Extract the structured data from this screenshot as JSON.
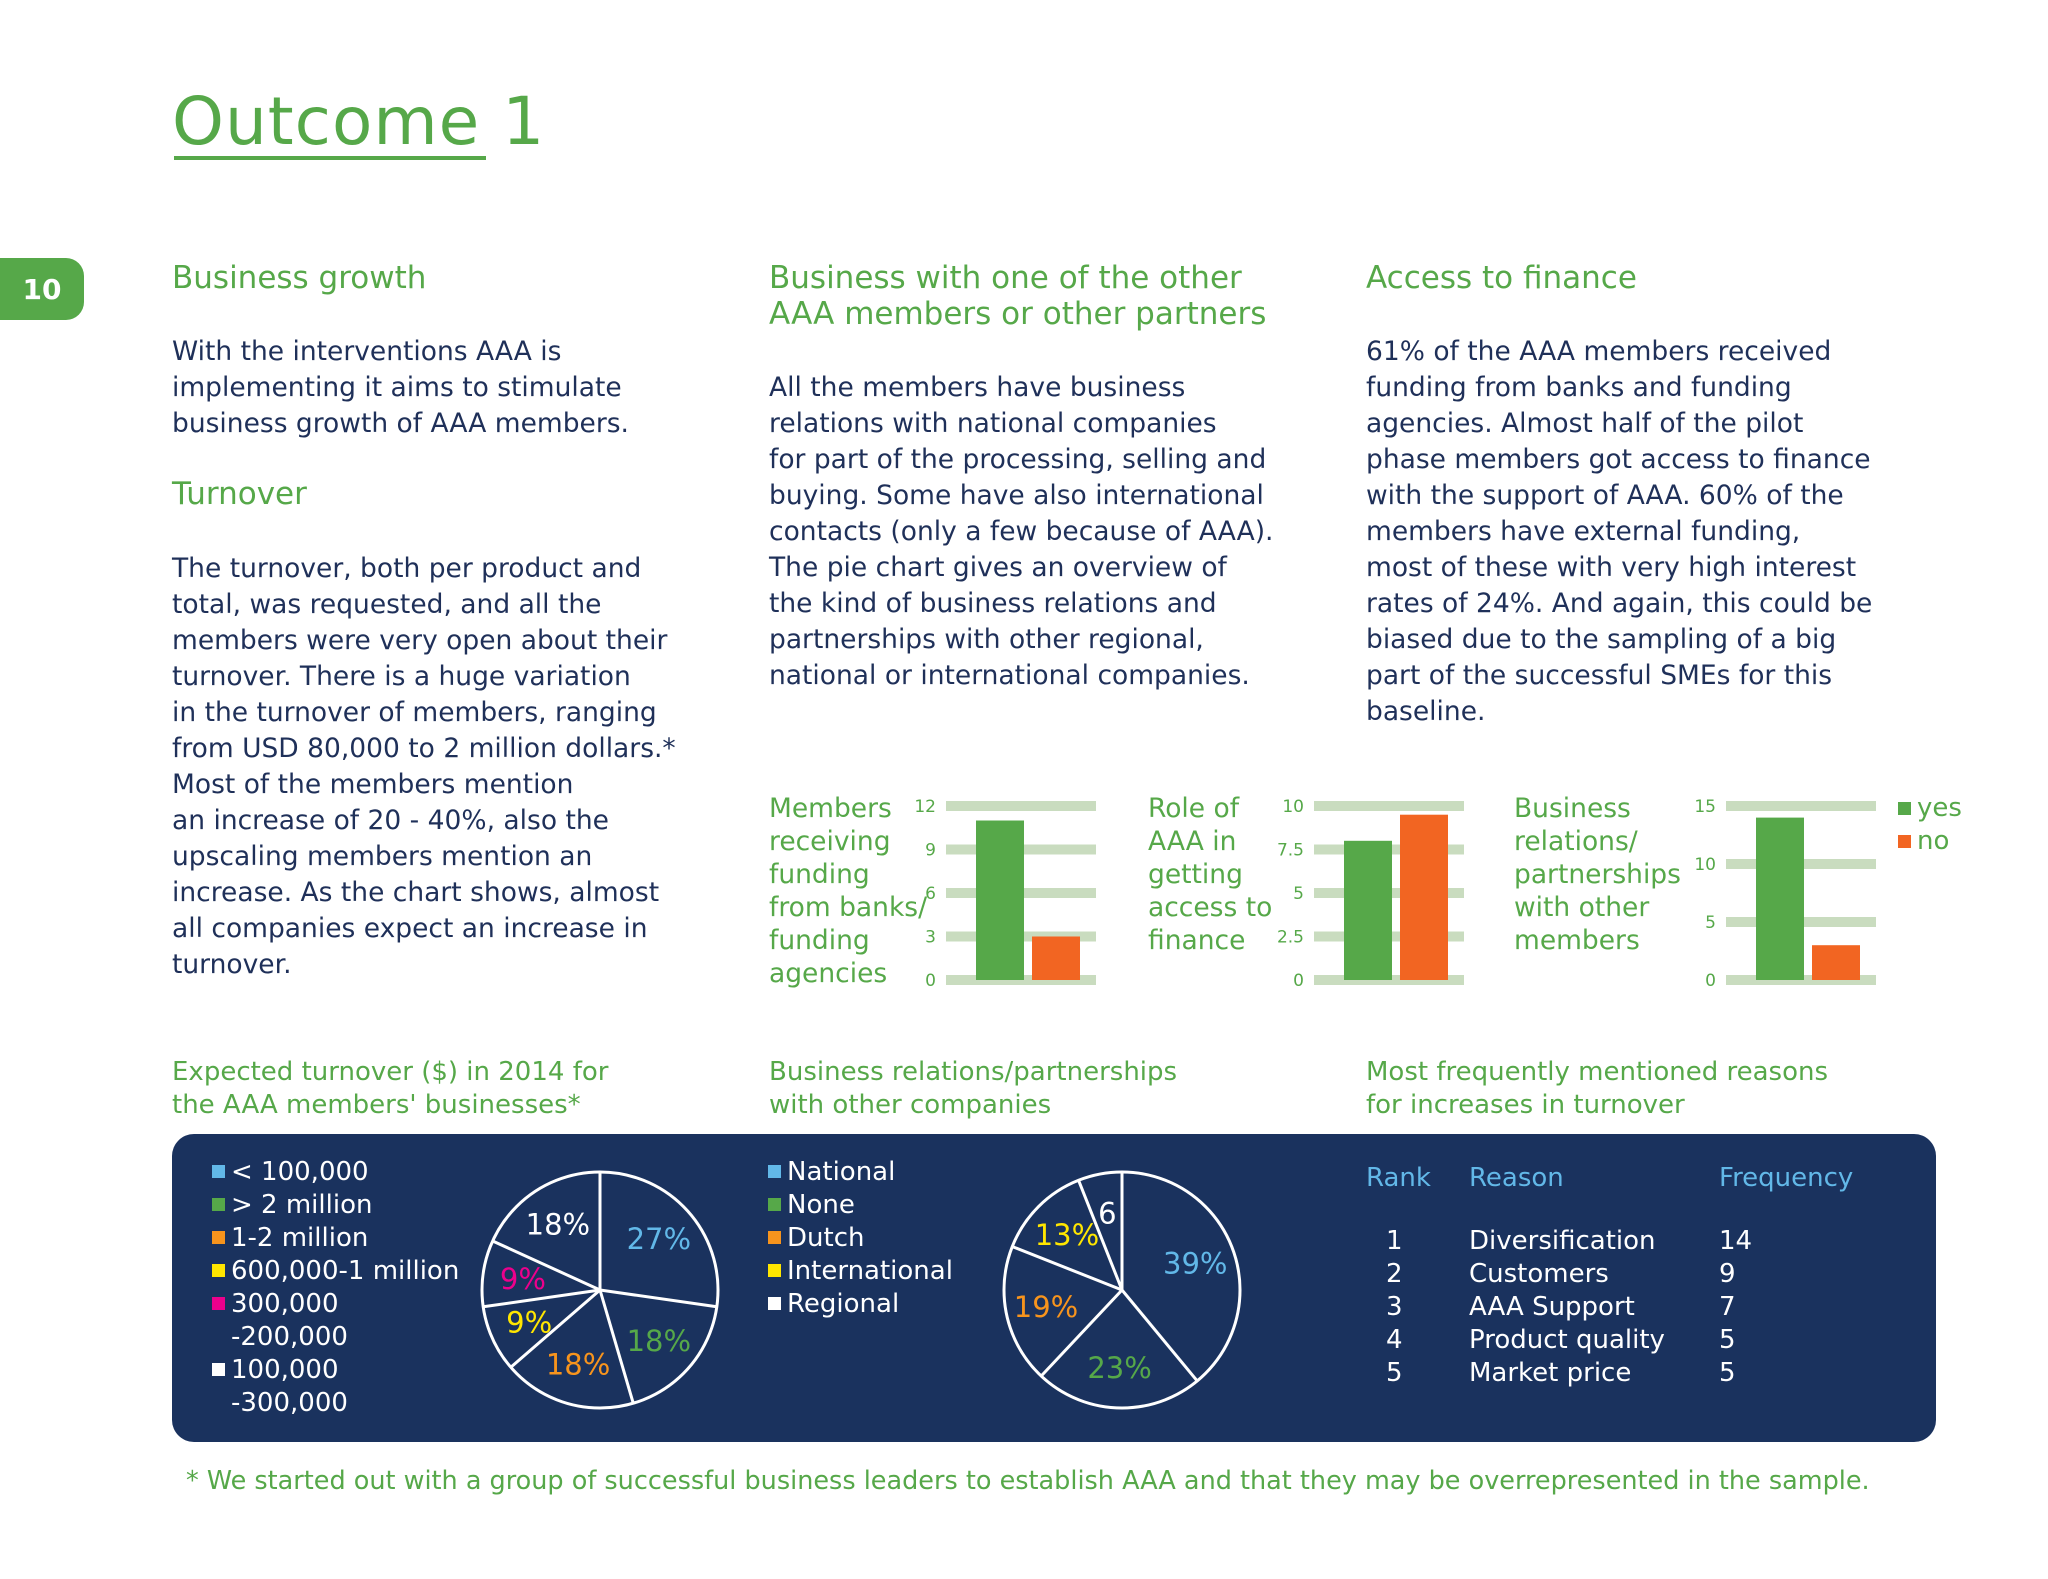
{
  "page": {
    "title": "Outcome 1",
    "page_number": "10",
    "footnote": "* We started out with a group of successful business leaders to establish AAA and that they may be overrepresented in the sample."
  },
  "col1": {
    "heading": "Business growth",
    "intro": "With the interventions AAA is\nimplementing it aims to stimulate\nbusiness growth of AAA members.",
    "subheading": "Turnover",
    "body": "The turnover, both per product and\ntotal, was requested, and all the\nmembers were very open about their\nturnover. There is a huge variation\nin the turnover of members, ranging\nfrom USD 80,000 to 2 million dollars.*\nMost of the members mention\nan increase of 20 - 40%, also the\nupscaling members mention an\nincrease. As the chart shows, almost\nall companies expect an increase in\nturnover."
  },
  "col2": {
    "heading": "Business with one of the other\nAAA members or other partners",
    "body": "All the members have business\nrelations with national companies\nfor part of the processing, selling and\nbuying. Some have also international\ncontacts (only a few because of AAA).\nThe pie chart gives an overview of\nthe kind of business relations and\npartnerships with other regional,\nnational or international companies."
  },
  "col3": {
    "heading": "Access to finance",
    "body": "61% of the AAA members received\nfunding from banks and funding\nagencies. Almost half of the pilot\nphase members got access to finance\nwith the support of AAA. 60% of the\nmembers have external funding,\nmost of these with very high interest\nrates of 24%. And again, this could be\nbiased due to the sampling of a big\npart of the successful SMEs for this\nbaseline."
  },
  "captions": {
    "turnover_pie": "Expected turnover ($) in 2014 for\nthe AAA members' businesses*",
    "relations_pie": "Business relations/partnerships\nwith other companies",
    "reasons_table": "Most frequently mentioned reasons\nfor increases in turnover"
  },
  "bar_legend": {
    "yes_label": "yes",
    "no_label": "no",
    "yes_color": "#56a849",
    "no_color": "#f26522",
    "grid_color": "#c9dcbf"
  },
  "chart_data": [
    {
      "type": "bar",
      "title": "Members\nreceiving\nfunding\nfrom banks/\nfunding\nagencies",
      "series": [
        {
          "name": "yes",
          "values": [
            11
          ]
        },
        {
          "name": "no",
          "values": [
            3
          ]
        }
      ],
      "ylim": [
        0,
        12
      ],
      "ticks": [
        "0",
        "3",
        "6",
        "9",
        "12"
      ],
      "tick_values": [
        0,
        3,
        6,
        9,
        12
      ]
    },
    {
      "type": "bar",
      "title": "Role of\nAAA in\ngetting\naccess to\nfinance",
      "series": [
        {
          "name": "yes",
          "values": [
            8
          ]
        },
        {
          "name": "no",
          "values": [
            9.5
          ]
        }
      ],
      "ylim": [
        0,
        10
      ],
      "ticks": [
        "0",
        "2.5",
        "5",
        "7.5",
        "10"
      ],
      "tick_values": [
        0,
        2.5,
        5,
        7.5,
        10
      ]
    },
    {
      "type": "bar",
      "title": "Business\nrelations/\npartnerships\nwith other\nmembers",
      "series": [
        {
          "name": "yes",
          "values": [
            14
          ]
        },
        {
          "name": "no",
          "values": [
            3
          ]
        }
      ],
      "ylim": [
        0,
        15
      ],
      "ticks": [
        "0",
        "5",
        "10",
        "15"
      ],
      "tick_values": [
        0,
        5,
        10,
        15
      ]
    },
    {
      "type": "pie",
      "title": "Expected turnover ($) in 2014 for the AAA members' businesses*",
      "legend": [
        {
          "label": "< 100,000",
          "color": "#62b8e8"
        },
        {
          "label": "> 2 million",
          "color": "#56a849"
        },
        {
          "label": "1-2 million",
          "color": "#f7941d"
        },
        {
          "label": "600,000-1 million",
          "color": "#ffe600"
        },
        {
          "label": "300,000",
          "label2": "-200,000",
          "color": "#ec008c"
        },
        {
          "label": "100,000",
          "label2": "-300,000",
          "color": "#ffffff"
        }
      ],
      "slices": [
        {
          "label": "27%",
          "value": 27,
          "color": "#62b8e8"
        },
        {
          "label": "18%",
          "value": 18,
          "color": "#56a849"
        },
        {
          "label": "18%",
          "value": 18,
          "color": "#f7941d"
        },
        {
          "label": "9%",
          "value": 9,
          "color": "#ffe600"
        },
        {
          "label": "9%",
          "value": 9,
          "color": "#ec008c"
        },
        {
          "label": "18%",
          "value": 18,
          "color": "#ffffff"
        }
      ]
    },
    {
      "type": "pie",
      "title": "Business relations/partnerships with other companies",
      "legend": [
        {
          "label": "National",
          "color": "#62b8e8"
        },
        {
          "label": "None",
          "color": "#56a849"
        },
        {
          "label": "Dutch",
          "color": "#f7941d"
        },
        {
          "label": "International",
          "color": "#ffe600"
        },
        {
          "label": "Regional",
          "color": "#ffffff"
        }
      ],
      "slices": [
        {
          "label": "39%",
          "value": 39,
          "color": "#62b8e8"
        },
        {
          "label": "23%",
          "value": 23,
          "color": "#56a849"
        },
        {
          "label": "19%",
          "value": 19,
          "color": "#f7941d"
        },
        {
          "label": "13%",
          "value": 13,
          "color": "#ffe600"
        },
        {
          "label": "6",
          "value": 6,
          "color": "#ffffff"
        }
      ]
    }
  ],
  "reasons_table": {
    "headers": [
      "Rank",
      "Reason",
      "Frequency"
    ],
    "rows": [
      [
        "1",
        "Diversification",
        "14"
      ],
      [
        "2",
        "Customers",
        "9"
      ],
      [
        "3",
        "AAA Support",
        "7"
      ],
      [
        "4",
        "Product quality",
        "5"
      ],
      [
        "5",
        "Market price",
        "5"
      ]
    ]
  }
}
